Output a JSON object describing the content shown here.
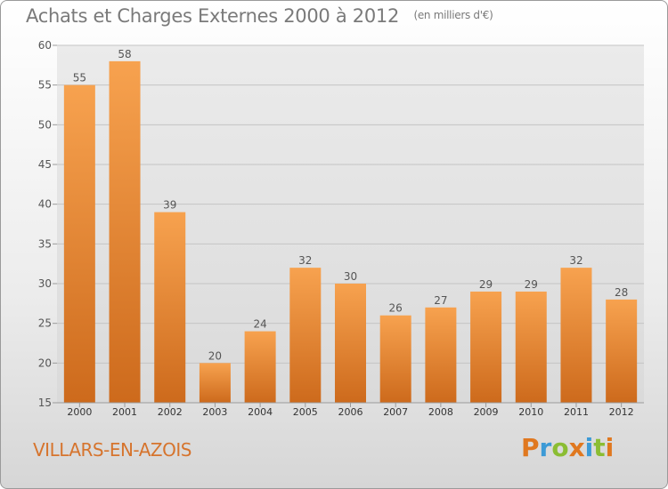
{
  "header": {
    "title": "Achats et Charges Externes 2000 à 2012",
    "unit": "(en milliers d'€)"
  },
  "footer": {
    "commune": "VILLARS-EN-AZOIS",
    "logo_text": "Proxiti"
  },
  "colors": {
    "bar_top": "#f7a24f",
    "bar_bottom": "#cd6a1c",
    "commune_text": "#d6742d",
    "logo_letters": [
      "#e0781f",
      "#3c9ad6",
      "#8bbd33",
      "#e0781f",
      "#3c9ad6",
      "#8bbd33",
      "#e0781f"
    ]
  },
  "chart_data": {
    "type": "bar",
    "title": "Achats et Charges Externes 2000 à 2012",
    "subtitle": "(en milliers d'€)",
    "categories": [
      "2000",
      "2001",
      "2002",
      "2003",
      "2004",
      "2005",
      "2006",
      "2007",
      "2008",
      "2009",
      "2010",
      "2011",
      "2012"
    ],
    "values": [
      55,
      58,
      39,
      20,
      24,
      32,
      30,
      26,
      27,
      29,
      29,
      32,
      28
    ],
    "ylim": [
      15,
      60
    ],
    "yticks": [
      15,
      20,
      25,
      30,
      35,
      40,
      45,
      50,
      55,
      60
    ],
    "grid": true,
    "data_labels": true
  }
}
